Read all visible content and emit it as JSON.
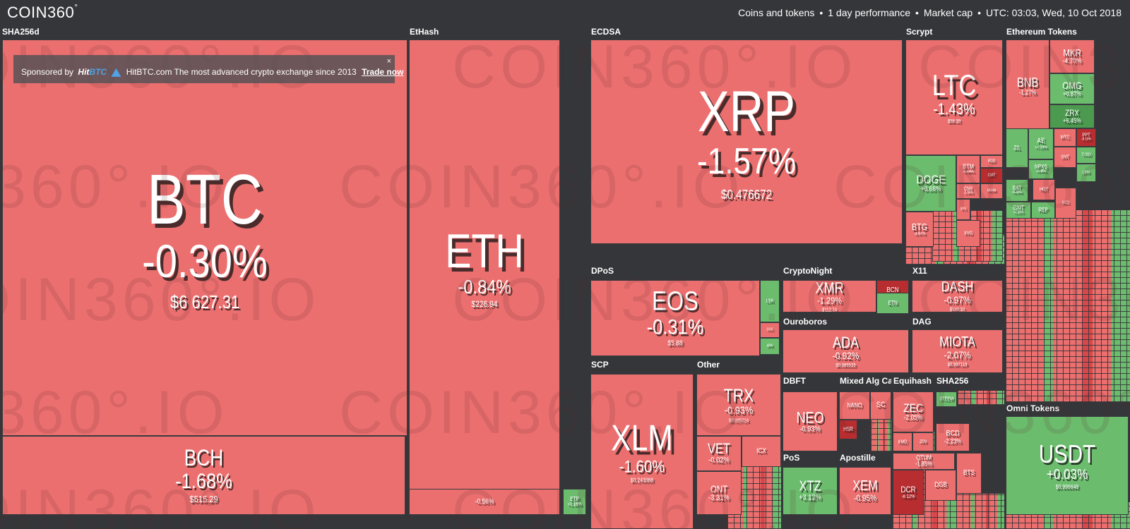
{
  "header": {
    "logo": "COIN360",
    "logo_mark": "°",
    "filter_coins": "Coins and tokens",
    "filter_period": "1 day performance",
    "filter_metric": "Market cap",
    "sep": "•",
    "datetime": "UTC: 03:03, Wed, 10 Oct 2018"
  },
  "sponsor": {
    "prefix": "Sponsored by",
    "brand_a": "Hit",
    "brand_b": "BTC",
    "text": "HitBTC.com The most advanced crypto exchange since 2013",
    "cta": "Trade now",
    "close": "×"
  },
  "watermark": "COIN360°.IO",
  "groups": {
    "sha256d": "SHA256d",
    "ethash": "EtHash",
    "ecdsa": "ECDSA",
    "scrypt": "Scrypt",
    "ethtokens": "Ethereum Tokens",
    "dpos": "DPoS",
    "cryptonight": "CryptoNight",
    "x11": "X11",
    "ouroboros": "Ouroboros",
    "dag": "DAG",
    "scp": "SCP",
    "other": "Other",
    "dbft": "DBFT",
    "mixed": "Mixed Alg Cat",
    "equihash": "Equihash",
    "sha256": "SHA256",
    "pos": "PoS",
    "apostille": "Apostille",
    "omni": "Omni Tokens"
  },
  "coins": {
    "btc": {
      "sym": "BTC",
      "pct": "-0.30%",
      "price": "$6 627.31"
    },
    "bch": {
      "sym": "BCH",
      "pct": "-1.68%",
      "price": "$515.29"
    },
    "eth": {
      "sym": "ETH",
      "pct": "-0.84%",
      "price": "$226.94"
    },
    "etc": {
      "sym": "ETC",
      "pct": "-0.56%",
      "price": ""
    },
    "etp": {
      "sym": "ETP",
      "pct": "+1.16%",
      "price": ""
    },
    "xrp": {
      "sym": "XRP",
      "pct": "-1.57%",
      "price": "$0.476672"
    },
    "ltc": {
      "sym": "LTC",
      "pct": "-1.43%",
      "price": "$58.39"
    },
    "doge": {
      "sym": "DOGE",
      "pct": "+0.66%",
      "price": ""
    },
    "btm": {
      "sym": "BTM",
      "pct": "-0.44%",
      "price": ""
    },
    "rdd": {
      "sym": "RDD",
      "pct": "",
      "price": ""
    },
    "cnx": {
      "sym": "CNX",
      "pct": "-2.45%",
      "price": ""
    },
    "cmt": {
      "sym": "CMT",
      "pct": "",
      "price": ""
    },
    "mona": {
      "sym": "MONA",
      "pct": "",
      "price": ""
    },
    "btg": {
      "sym": "BTG",
      "pct": "-3.47%",
      "price": ""
    },
    "sys": {
      "sym": "SYS",
      "pct": "",
      "price": ""
    },
    "xvg": {
      "sym": "XVG",
      "pct": "",
      "price": ""
    },
    "bnb": {
      "sym": "BNB",
      "pct": "-1.27%",
      "price": ""
    },
    "mkr": {
      "sym": "MKR",
      "pct": "-4.70%",
      "price": ""
    },
    "omg": {
      "sym": "OMG",
      "pct": "+0.87%",
      "price": ""
    },
    "zrx": {
      "sym": "ZRX",
      "pct": "+6.45%",
      "price": ""
    },
    "zil": {
      "sym": "ZIL",
      "pct": "",
      "price": ""
    },
    "ae": {
      "sym": "AE",
      "pct": "+7.09%",
      "price": ""
    },
    "wtc": {
      "sym": "WTC",
      "pct": "",
      "price": ""
    },
    "ppt": {
      "sym": "PPT",
      "pct": "-8.15%",
      "price": ""
    },
    "tusd": {
      "sym": "TUSD",
      "pct": "",
      "price": ""
    },
    "npxs": {
      "sym": "NPXS",
      "pct": "+0.48%",
      "price": ""
    },
    "snt": {
      "sym": "SNT",
      "pct": "",
      "price": ""
    },
    "link": {
      "sym": "LINK",
      "pct": "",
      "price": ""
    },
    "bat": {
      "sym": "BAT",
      "pct": "+6.04%",
      "price": ""
    },
    "mith": {
      "sym": "MITH",
      "pct": "",
      "price": ""
    },
    "hot": {
      "sym": "HOT",
      "pct": "",
      "price": ""
    },
    "gnt": {
      "sym": "GNT",
      "pct": "+2.00%",
      "price": ""
    },
    "rep": {
      "sym": "REP",
      "pct": "",
      "price": ""
    },
    "kcs": {
      "sym": "KCS",
      "pct": "",
      "price": ""
    },
    "eos": {
      "sym": "EOS",
      "pct": "-0.31%",
      "price": "$5.88"
    },
    "lsk": {
      "sym": "LSK",
      "pct": "",
      "price": ""
    },
    "gxs": {
      "sym": "GXS",
      "pct": "",
      "price": ""
    },
    "ark": {
      "sym": "ARK",
      "pct": "",
      "price": ""
    },
    "xmr": {
      "sym": "XMR",
      "pct": "-1.29%",
      "price": "$112.74"
    },
    "bcn": {
      "sym": "BCN",
      "pct": "-12.83%",
      "price": ""
    },
    "etn": {
      "sym": "ETN",
      "pct": "",
      "price": ""
    },
    "dash": {
      "sym": "DASH",
      "pct": "-0.97%",
      "price": "$180.32"
    },
    "ada": {
      "sym": "ADA",
      "pct": "-0.92%",
      "price": "$0.085529"
    },
    "miota": {
      "sym": "MIOTA",
      "pct": "-2.07%",
      "price": "$0.587119"
    },
    "xlm": {
      "sym": "XLM",
      "pct": "-1.60%",
      "price": "$0.243068"
    },
    "trx": {
      "sym": "TRX",
      "pct": "-0.93%",
      "price": "$0.025724"
    },
    "vet": {
      "sym": "VET",
      "pct": "-0.02%",
      "price": ""
    },
    "icx": {
      "sym": "ICX",
      "pct": "",
      "price": ""
    },
    "ont": {
      "sym": "ONT",
      "pct": "-3.31%",
      "price": ""
    },
    "neo": {
      "sym": "NEO",
      "pct": "-0.93%",
      "price": ""
    },
    "nano": {
      "sym": "NANO",
      "pct": "",
      "price": ""
    },
    "sc": {
      "sym": "SC",
      "pct": "",
      "price": ""
    },
    "hsr": {
      "sym": "HSR",
      "pct": "",
      "price": ""
    },
    "zec": {
      "sym": "ZEC",
      "pct": "-2.05%",
      "price": ""
    },
    "kmd": {
      "sym": "KMD",
      "pct": "",
      "price": ""
    },
    "zen": {
      "sym": "ZEN",
      "pct": "",
      "price": ""
    },
    "steem": {
      "sym": "STEEM",
      "pct": "",
      "price": ""
    },
    "bcd": {
      "sym": "BCD",
      "pct": "-2.23%",
      "price": ""
    },
    "xtz": {
      "sym": "XTZ",
      "pct": "+3.12%",
      "price": ""
    },
    "xem": {
      "sym": "XEM",
      "pct": "-0.95%",
      "price": ""
    },
    "qtum": {
      "sym": "QTUM",
      "pct": "-1.85%",
      "price": ""
    },
    "bts": {
      "sym": "BTS",
      "pct": "",
      "price": ""
    },
    "dcr": {
      "sym": "DCR",
      "pct": "-8.12%",
      "price": ""
    },
    "dgb": {
      "sym": "DGB",
      "pct": "",
      "price": ""
    },
    "usdt": {
      "sym": "USDT",
      "pct": "+0.03%",
      "price": "$0.996648"
    }
  }
}
